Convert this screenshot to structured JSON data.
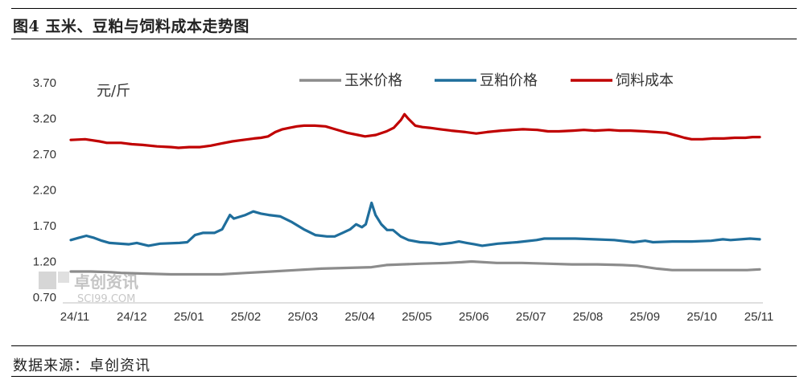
{
  "title": "图4 玉米、豆粕与饲料成本走势图",
  "source": "数据来源：卓创资讯",
  "watermark": {
    "name": "卓创资讯",
    "site": "SCI99.COM"
  },
  "colors": {
    "corn": "#8c8c8c",
    "soymeal": "#1f6e9c",
    "feed": "#c00000"
  },
  "chart_data": {
    "type": "line",
    "unit_label": "元/斤",
    "x_labels": [
      "24/11",
      "24/12",
      "25/01",
      "25/02",
      "25/03",
      "25/04",
      "25/05",
      "25/06",
      "25/07",
      "25/08",
      "25/09",
      "25/10",
      "25/11"
    ],
    "y_ticks": [
      "0.70",
      "1.20",
      "1.70",
      "2.20",
      "2.70",
      "3.20",
      "3.70"
    ],
    "ylim": [
      0.7,
      3.7
    ],
    "legend_position": "top-right",
    "grid": false,
    "series": [
      {
        "name": "玉米价格",
        "color": "#8c8c8c",
        "points": [
          [
            0,
            1.06
          ],
          [
            0.4,
            1.06
          ],
          [
            0.8,
            1.05
          ],
          [
            1.0,
            1.04
          ],
          [
            1.5,
            1.03
          ],
          [
            2.0,
            1.02
          ],
          [
            2.5,
            1.02
          ],
          [
            3.0,
            1.02
          ],
          [
            3.5,
            1.04
          ],
          [
            4.0,
            1.06
          ],
          [
            4.5,
            1.08
          ],
          [
            5.0,
            1.1
          ],
          [
            5.5,
            1.11
          ],
          [
            6.0,
            1.12
          ],
          [
            6.3,
            1.15
          ],
          [
            7.0,
            1.17
          ],
          [
            7.5,
            1.18
          ],
          [
            7.8,
            1.19
          ],
          [
            8.0,
            1.2
          ],
          [
            8.5,
            1.18
          ],
          [
            9.0,
            1.18
          ],
          [
            9.5,
            1.17
          ],
          [
            10.0,
            1.16
          ],
          [
            10.5,
            1.16
          ],
          [
            11.0,
            1.15
          ],
          [
            11.3,
            1.14
          ],
          [
            11.7,
            1.1
          ],
          [
            12.0,
            1.08
          ],
          [
            12.5,
            1.08
          ],
          [
            13.0,
            1.08
          ],
          [
            13.5,
            1.08
          ],
          [
            13.75,
            1.09
          ]
        ]
      },
      {
        "name": "豆粕价格",
        "color": "#1f6e9c",
        "points": [
          [
            0,
            1.5
          ],
          [
            0.2,
            1.53
          ],
          [
            0.4,
            1.56
          ],
          [
            0.6,
            1.53
          ],
          [
            0.8,
            1.49
          ],
          [
            1.0,
            1.46
          ],
          [
            1.5,
            1.44
          ],
          [
            1.7,
            1.46
          ],
          [
            2.0,
            1.42
          ],
          [
            2.3,
            1.45
          ],
          [
            2.8,
            1.46
          ],
          [
            3.0,
            1.47
          ],
          [
            3.2,
            1.57
          ],
          [
            3.4,
            1.6
          ],
          [
            3.7,
            1.6
          ],
          [
            3.9,
            1.65
          ],
          [
            4.1,
            1.85
          ],
          [
            4.2,
            1.8
          ],
          [
            4.5,
            1.85
          ],
          [
            4.7,
            1.9
          ],
          [
            4.9,
            1.87
          ],
          [
            5.1,
            1.85
          ],
          [
            5.4,
            1.83
          ],
          [
            5.7,
            1.75
          ],
          [
            6.0,
            1.65
          ],
          [
            6.3,
            1.57
          ],
          [
            6.6,
            1.55
          ],
          [
            6.8,
            1.55
          ],
          [
            7.0,
            1.6
          ],
          [
            7.2,
            1.65
          ],
          [
            7.35,
            1.72
          ],
          [
            7.5,
            1.68
          ],
          [
            7.6,
            1.72
          ],
          [
            7.75,
            2.02
          ],
          [
            7.85,
            1.85
          ],
          [
            8.0,
            1.72
          ],
          [
            8.15,
            1.64
          ],
          [
            8.3,
            1.64
          ],
          [
            8.5,
            1.55
          ],
          [
            8.7,
            1.5
          ],
          [
            9.0,
            1.47
          ],
          [
            9.3,
            1.46
          ],
          [
            9.5,
            1.44
          ],
          [
            9.8,
            1.46
          ],
          [
            10.0,
            1.48
          ],
          [
            10.2,
            1.46
          ],
          [
            10.4,
            1.44
          ],
          [
            10.6,
            1.42
          ],
          [
            11.0,
            1.45
          ],
          [
            11.5,
            1.47
          ],
          [
            12.0,
            1.5
          ],
          [
            12.2,
            1.52
          ],
          [
            12.5,
            1.52
          ],
          [
            13.0,
            1.52
          ],
          [
            13.5,
            1.51
          ],
          [
            14.0,
            1.5
          ],
          [
            14.5,
            1.47
          ],
          [
            14.8,
            1.49
          ],
          [
            15.0,
            1.47
          ],
          [
            15.5,
            1.48
          ],
          [
            16.0,
            1.48
          ],
          [
            16.5,
            1.49
          ],
          [
            16.8,
            1.51
          ],
          [
            17.0,
            1.5
          ],
          [
            17.5,
            1.52
          ],
          [
            17.75,
            1.51
          ]
        ]
      },
      {
        "name": "饲料成本",
        "color": "#c00000",
        "points": [
          [
            0,
            2.9
          ],
          [
            0.4,
            2.91
          ],
          [
            0.8,
            2.88
          ],
          [
            1.0,
            2.86
          ],
          [
            1.4,
            2.86
          ],
          [
            1.7,
            2.84
          ],
          [
            2.0,
            2.83
          ],
          [
            2.4,
            2.81
          ],
          [
            2.8,
            2.8
          ],
          [
            3.0,
            2.79
          ],
          [
            3.3,
            2.8
          ],
          [
            3.6,
            2.8
          ],
          [
            3.9,
            2.82
          ],
          [
            4.2,
            2.85
          ],
          [
            4.5,
            2.88
          ],
          [
            4.8,
            2.9
          ],
          [
            5.1,
            2.92
          ],
          [
            5.3,
            2.93
          ],
          [
            5.5,
            2.95
          ],
          [
            5.7,
            3.01
          ],
          [
            5.9,
            3.05
          ],
          [
            6.1,
            3.07
          ],
          [
            6.3,
            3.09
          ],
          [
            6.5,
            3.1
          ],
          [
            6.8,
            3.1
          ],
          [
            7.1,
            3.09
          ],
          [
            7.3,
            3.06
          ],
          [
            7.5,
            3.03
          ],
          [
            7.7,
            3.0
          ],
          [
            8.0,
            2.97
          ],
          [
            8.2,
            2.95
          ],
          [
            8.5,
            2.97
          ],
          [
            8.8,
            3.02
          ],
          [
            9.0,
            3.07
          ],
          [
            9.2,
            3.18
          ],
          [
            9.3,
            3.26
          ],
          [
            9.4,
            3.2
          ],
          [
            9.6,
            3.1
          ],
          [
            9.8,
            3.08
          ],
          [
            10.0,
            3.07
          ],
          [
            10.3,
            3.05
          ],
          [
            10.6,
            3.03
          ],
          [
            11.0,
            3.01
          ],
          [
            11.3,
            2.99
          ],
          [
            11.6,
            3.01
          ],
          [
            12.0,
            3.03
          ],
          [
            12.3,
            3.04
          ],
          [
            12.6,
            3.05
          ],
          [
            13.0,
            3.04
          ],
          [
            13.3,
            3.02
          ],
          [
            13.6,
            3.02
          ],
          [
            14.0,
            3.03
          ],
          [
            14.3,
            3.04
          ],
          [
            14.6,
            3.03
          ],
          [
            15.0,
            3.04
          ],
          [
            15.3,
            3.03
          ],
          [
            15.6,
            3.03
          ],
          [
            16.0,
            3.02
          ],
          [
            16.3,
            3.01
          ],
          [
            16.6,
            3.0
          ],
          [
            16.9,
            2.96
          ],
          [
            17.1,
            2.93
          ],
          [
            17.3,
            2.91
          ],
          [
            17.6,
            2.91
          ],
          [
            17.9,
            2.92
          ],
          [
            18.2,
            2.92
          ],
          [
            18.5,
            2.93
          ],
          [
            18.8,
            2.93
          ],
          [
            19.0,
            2.94
          ],
          [
            19.2,
            2.94
          ]
        ]
      }
    ]
  }
}
